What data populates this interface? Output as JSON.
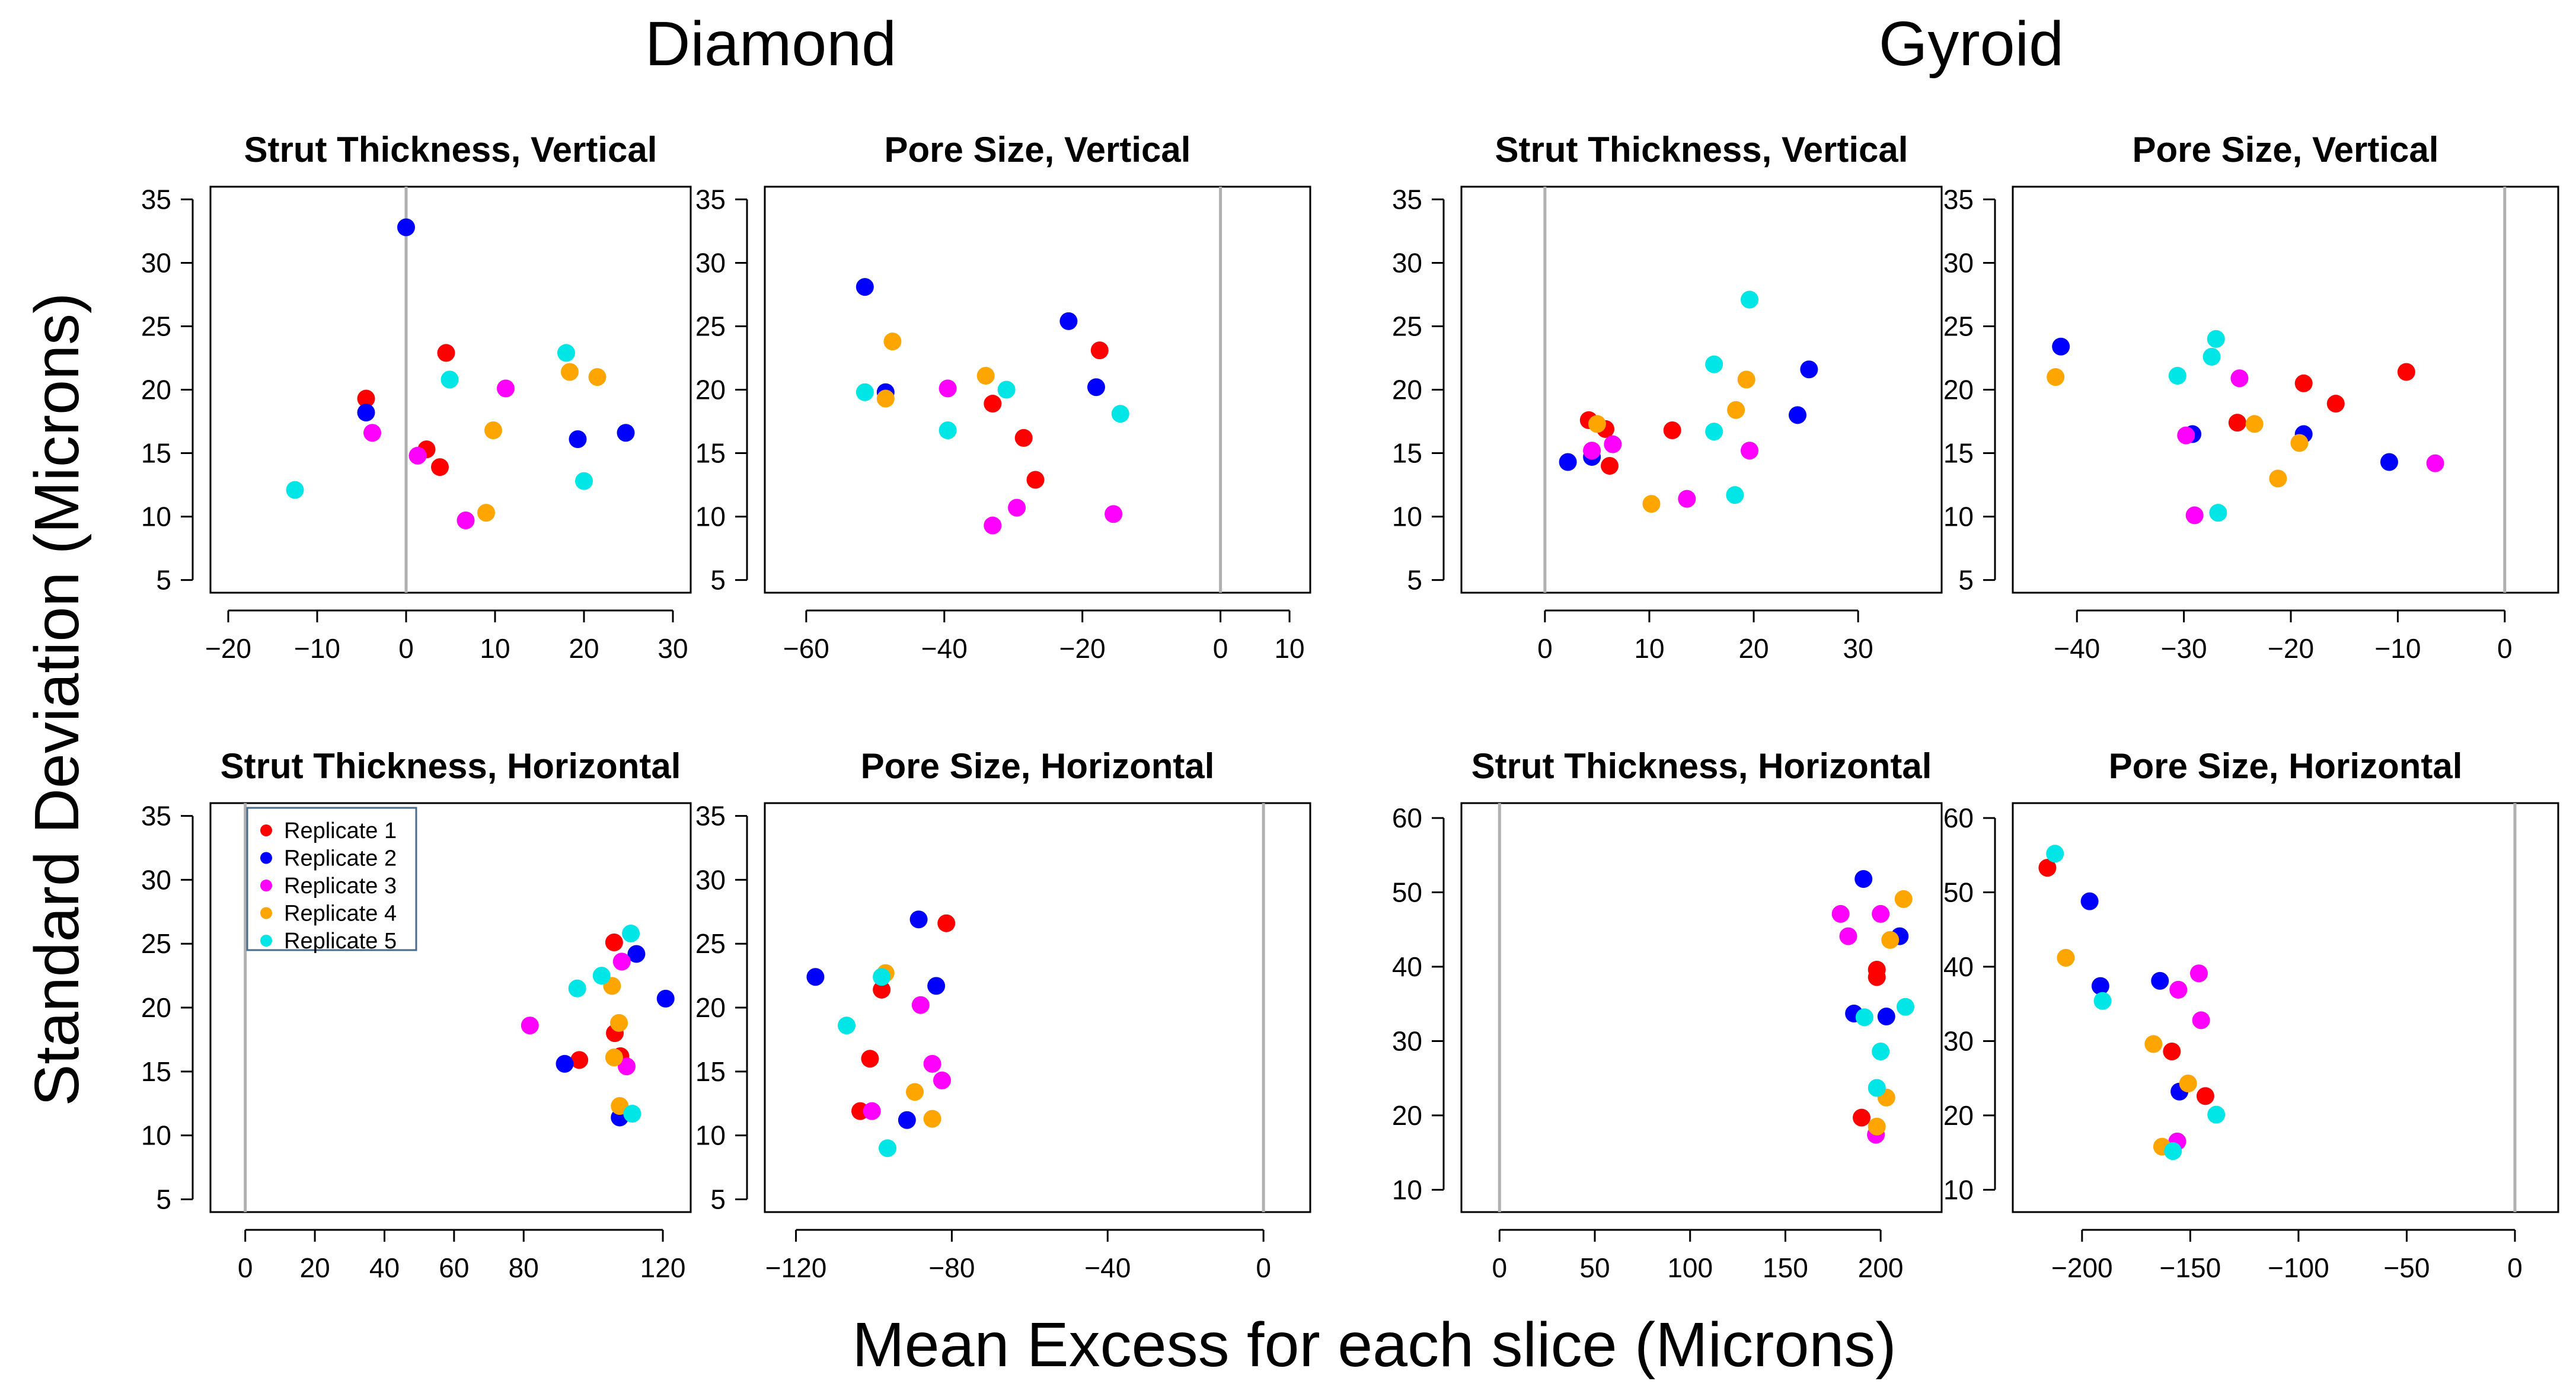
{
  "figure": {
    "group_titles": [
      "Diamond",
      "Gyroid"
    ],
    "ylabel": "Standard Deviation (Microns)",
    "xlabel": "Mean Excess for each slice (Microns)"
  },
  "legend": [
    {
      "label": "Replicate 1",
      "color": "#ff0000"
    },
    {
      "label": "Replicate 2",
      "color": "#0000ff"
    },
    {
      "label": "Replicate 3",
      "color": "#ff00ff"
    },
    {
      "label": "Replicate 4",
      "color": "#ffa500"
    },
    {
      "label": "Replicate 5",
      "color": "#00e5e5"
    }
  ],
  "chart_data": [
    {
      "type": "scatter",
      "group": "Diamond",
      "title": "Strut Thickness,  Vertical",
      "xlim": [
        -22,
        32
      ],
      "ylim": [
        4,
        36
      ],
      "xticks": [
        -20,
        -10,
        0,
        10,
        20,
        30
      ],
      "yticks": [
        5,
        10,
        15,
        20,
        25,
        30,
        35
      ],
      "zero_line": 0,
      "legend": false,
      "series": [
        {
          "name": "Replicate 1",
          "points": [
            [
              -4.5,
              19.3
            ],
            [
              2.3,
              15.3
            ],
            [
              3.8,
              13.9
            ],
            [
              4.5,
              22.9
            ]
          ]
        },
        {
          "name": "Replicate 2",
          "points": [
            [
              0,
              32.8
            ],
            [
              -4.5,
              18.2
            ],
            [
              19.3,
              16.1
            ],
            [
              24.7,
              16.6
            ]
          ]
        },
        {
          "name": "Replicate 3",
          "points": [
            [
              -3.8,
              16.6
            ],
            [
              1.3,
              14.8
            ],
            [
              6.7,
              9.7
            ],
            [
              11.2,
              20.1
            ]
          ]
        },
        {
          "name": "Replicate 4",
          "points": [
            [
              9,
              10.3
            ],
            [
              9.8,
              16.8
            ],
            [
              18.4,
              21.4
            ],
            [
              21.5,
              21
            ]
          ]
        },
        {
          "name": "Replicate 5",
          "points": [
            [
              -12.5,
              12.1
            ],
            [
              4.9,
              20.8
            ],
            [
              18,
              22.9
            ],
            [
              20,
              12.8
            ]
          ]
        }
      ]
    },
    {
      "type": "scatter",
      "group": "Diamond",
      "title": "Pore Size,  Vertical",
      "xlim": [
        -66,
        13
      ],
      "ylim": [
        4,
        36
      ],
      "xticks": [
        -60,
        -40,
        -20,
        0,
        10
      ],
      "yticks": [
        5,
        10,
        15,
        20,
        25,
        30,
        35
      ],
      "zero_line": 0,
      "legend": false,
      "series": [
        {
          "name": "Replicate 1",
          "points": [
            [
              -17.5,
              23.1
            ],
            [
              -33,
              18.9
            ],
            [
              -28.5,
              16.2
            ],
            [
              -26.8,
              12.9
            ]
          ]
        },
        {
          "name": "Replicate 2",
          "points": [
            [
              -51.5,
              28.1
            ],
            [
              -48.5,
              19.8
            ],
            [
              -22,
              25.4
            ],
            [
              -18,
              20.2
            ]
          ]
        },
        {
          "name": "Replicate 3",
          "points": [
            [
              -39.5,
              20.1
            ],
            [
              -29.5,
              10.7
            ],
            [
              -33,
              9.3
            ],
            [
              -15.5,
              10.2
            ]
          ]
        },
        {
          "name": "Replicate 4",
          "points": [
            [
              -47.5,
              23.8
            ],
            [
              -48.5,
              19.3
            ],
            [
              -34,
              21.1
            ]
          ]
        },
        {
          "name": "Replicate 5",
          "points": [
            [
              -51.5,
              19.8
            ],
            [
              -39.5,
              16.8
            ],
            [
              -31,
              20
            ],
            [
              -14.5,
              18.1
            ]
          ]
        }
      ]
    },
    {
      "type": "scatter",
      "group": "Gyroid",
      "title": "Strut Thickness,  Vertical",
      "xlim": [
        -8,
        38
      ],
      "ylim": [
        4,
        36
      ],
      "xticks": [
        0,
        10,
        20,
        30
      ],
      "yticks": [
        5,
        10,
        15,
        20,
        25,
        30,
        35
      ],
      "zero_line": 0,
      "legend": false,
      "series": [
        {
          "name": "Replicate 1",
          "points": [
            [
              4.2,
              17.6
            ],
            [
              5.8,
              16.9
            ],
            [
              6.2,
              14
            ],
            [
              12.2,
              16.8
            ]
          ]
        },
        {
          "name": "Replicate 2",
          "points": [
            [
              2.2,
              14.3
            ],
            [
              4.5,
              14.7
            ],
            [
              24.2,
              18
            ],
            [
              25.3,
              21.6
            ]
          ]
        },
        {
          "name": "Replicate 3",
          "points": [
            [
              4.5,
              15.2
            ],
            [
              6.5,
              15.7
            ],
            [
              13.6,
              11.4
            ],
            [
              19.6,
              15.2
            ]
          ]
        },
        {
          "name": "Replicate 4",
          "points": [
            [
              5,
              17.3
            ],
            [
              10.2,
              11
            ],
            [
              18.3,
              18.4
            ],
            [
              19.3,
              20.8
            ]
          ]
        },
        {
          "name": "Replicate 5",
          "points": [
            [
              16.2,
              22
            ],
            [
              16.2,
              16.7
            ],
            [
              18.2,
              11.7
            ],
            [
              19.6,
              27.1
            ]
          ]
        }
      ]
    },
    {
      "type": "scatter",
      "group": "Gyroid",
      "title": "Pore Size,  Vertical",
      "xlim": [
        -46,
        5
      ],
      "ylim": [
        4,
        36
      ],
      "xticks": [
        -40,
        -30,
        -20,
        -10,
        0
      ],
      "yticks": [
        5,
        10,
        15,
        20,
        25,
        30,
        35
      ],
      "zero_line": 0,
      "legend": false,
      "series": [
        {
          "name": "Replicate 1",
          "points": [
            [
              -25,
              17.4
            ],
            [
              -18.8,
              20.5
            ],
            [
              -15.8,
              18.9
            ],
            [
              -9.2,
              21.4
            ]
          ]
        },
        {
          "name": "Replicate 2",
          "points": [
            [
              -41.5,
              23.4
            ],
            [
              -29.2,
              16.5
            ],
            [
              -18.8,
              16.5
            ],
            [
              -10.8,
              14.3
            ]
          ]
        },
        {
          "name": "Replicate 3",
          "points": [
            [
              -29.8,
              16.4
            ],
            [
              -29,
              10.1
            ],
            [
              -24.8,
              20.9
            ],
            [
              -6.5,
              14.2
            ]
          ]
        },
        {
          "name": "Replicate 4",
          "points": [
            [
              -42,
              21
            ],
            [
              -23.4,
              17.3
            ],
            [
              -21.2,
              13
            ],
            [
              -19.2,
              15.8
            ]
          ]
        },
        {
          "name": "Replicate 5",
          "points": [
            [
              -30.6,
              21.1
            ],
            [
              -27.4,
              22.6
            ],
            [
              -27,
              24
            ],
            [
              -26.8,
              10.3
            ]
          ]
        }
      ]
    },
    {
      "type": "scatter",
      "group": "Diamond",
      "title": "Strut Thickness,  Horizontal",
      "xlim": [
        -10,
        128
      ],
      "ylim": [
        4,
        36
      ],
      "xticks": [
        0,
        20,
        40,
        60,
        80,
        120
      ],
      "yticks": [
        5,
        10,
        15,
        20,
        25,
        30,
        35
      ],
      "zero_line": 0,
      "legend": true,
      "series": [
        {
          "name": "Replicate 1",
          "points": [
            [
              106,
              25.1
            ],
            [
              106.2,
              18
            ],
            [
              96,
              15.9
            ],
            [
              107.8,
              16.2
            ]
          ]
        },
        {
          "name": "Replicate 2",
          "points": [
            [
              112.4,
              24.2
            ],
            [
              120.8,
              20.7
            ],
            [
              91.8,
              15.6
            ],
            [
              107.6,
              11.4
            ]
          ]
        },
        {
          "name": "Replicate 3",
          "points": [
            [
              108.2,
              23.6
            ],
            [
              81.8,
              18.6
            ],
            [
              109.6,
              15.4
            ]
          ]
        },
        {
          "name": "Replicate 4",
          "points": [
            [
              105.4,
              21.7
            ],
            [
              107.4,
              18.8
            ],
            [
              106,
              16.1
            ],
            [
              107.6,
              12.3
            ]
          ]
        },
        {
          "name": "Replicate 5",
          "points": [
            [
              110.8,
              25.8
            ],
            [
              95.4,
              21.5
            ],
            [
              102.4,
              22.5
            ],
            [
              111.2,
              11.7
            ]
          ]
        }
      ]
    },
    {
      "type": "scatter",
      "group": "Diamond",
      "title": "Pore Size,  Horizontal",
      "xlim": [
        -128,
        12
      ],
      "ylim": [
        4,
        36
      ],
      "xticks": [
        -120,
        -80,
        -40,
        0
      ],
      "yticks": [
        5,
        10,
        15,
        20,
        25,
        30,
        35
      ],
      "zero_line": 0,
      "legend": false,
      "series": [
        {
          "name": "Replicate 1",
          "points": [
            [
              -81.4,
              26.6
            ],
            [
              -98,
              21.4
            ],
            [
              -101,
              16
            ],
            [
              -103.5,
              11.9
            ]
          ]
        },
        {
          "name": "Replicate 2",
          "points": [
            [
              -88.5,
              26.9
            ],
            [
              -115,
              22.4
            ],
            [
              -84,
              21.7
            ],
            [
              -91.5,
              11.2
            ]
          ]
        },
        {
          "name": "Replicate 3",
          "points": [
            [
              -88,
              20.2
            ],
            [
              -85,
              15.6
            ],
            [
              -82.5,
              14.3
            ],
            [
              -100.5,
              11.9
            ]
          ]
        },
        {
          "name": "Replicate 4",
          "points": [
            [
              -97,
              22.7
            ],
            [
              -89.5,
              13.4
            ],
            [
              -85,
              11.3
            ]
          ]
        },
        {
          "name": "Replicate 5",
          "points": [
            [
              -98,
              22.4
            ],
            [
              -107,
              18.6
            ],
            [
              -96.5,
              9
            ]
          ]
        }
      ]
    },
    {
      "type": "scatter",
      "group": "Gyroid",
      "title": "Strut Thickness,  Horizontal",
      "xlim": [
        -20,
        232
      ],
      "ylim": [
        7,
        62
      ],
      "xticks": [
        0,
        50,
        100,
        150,
        200
      ],
      "yticks": [
        10,
        20,
        30,
        40,
        50,
        60
      ],
      "zero_line": 0,
      "legend": false,
      "series": [
        {
          "name": "Replicate 1",
          "points": [
            [
              198,
              39.6
            ],
            [
              198,
              38.6
            ],
            [
              190,
              19.7
            ]
          ]
        },
        {
          "name": "Replicate 2",
          "points": [
            [
              191,
              51.8
            ],
            [
              210,
              44.1
            ],
            [
              186,
              33.7
            ],
            [
              203,
              33.3
            ]
          ]
        },
        {
          "name": "Replicate 3",
          "points": [
            [
              179,
              47.1
            ],
            [
              183,
              44.1
            ],
            [
              200,
              47.1
            ],
            [
              197.5,
              17.4
            ]
          ]
        },
        {
          "name": "Replicate 4",
          "points": [
            [
              212,
              49.1
            ],
            [
              205,
              43.6
            ],
            [
              203,
              22.4
            ],
            [
              198,
              18.5
            ]
          ]
        },
        {
          "name": "Replicate 5",
          "points": [
            [
              191.5,
              33.2
            ],
            [
              213,
              34.6
            ],
            [
              200,
              28.6
            ],
            [
              198,
              23.7
            ]
          ]
        }
      ]
    },
    {
      "type": "scatter",
      "group": "Gyroid",
      "title": "Pore Size,  Horizontal",
      "xlim": [
        -232,
        20
      ],
      "ylim": [
        7,
        62
      ],
      "xticks": [
        -200,
        -150,
        -100,
        -50,
        0
      ],
      "yticks": [
        10,
        20,
        30,
        40,
        50,
        60
      ],
      "zero_line": 0,
      "legend": false,
      "series": [
        {
          "name": "Replicate 1",
          "points": [
            [
              -216,
              53.3
            ],
            [
              -158.5,
              28.6
            ],
            [
              -143,
              22.6
            ]
          ]
        },
        {
          "name": "Replicate 2",
          "points": [
            [
              -196.5,
              48.8
            ],
            [
              -191.5,
              37.4
            ],
            [
              -164,
              38.1
            ],
            [
              -155,
              23.2
            ]
          ]
        },
        {
          "name": "Replicate 3",
          "points": [
            [
              -155.5,
              36.9
            ],
            [
              -146,
              39.1
            ],
            [
              -145,
              32.8
            ],
            [
              -156,
              16.5
            ]
          ]
        },
        {
          "name": "Replicate 4",
          "points": [
            [
              -207.5,
              41.2
            ],
            [
              -167,
              29.6
            ],
            [
              -151,
              24.3
            ],
            [
              -163,
              15.8
            ]
          ]
        },
        {
          "name": "Replicate 5",
          "points": [
            [
              -212.5,
              55.2
            ],
            [
              -190.5,
              35.4
            ],
            [
              -138,
              20.1
            ],
            [
              -158,
              15.2
            ]
          ]
        }
      ]
    }
  ]
}
